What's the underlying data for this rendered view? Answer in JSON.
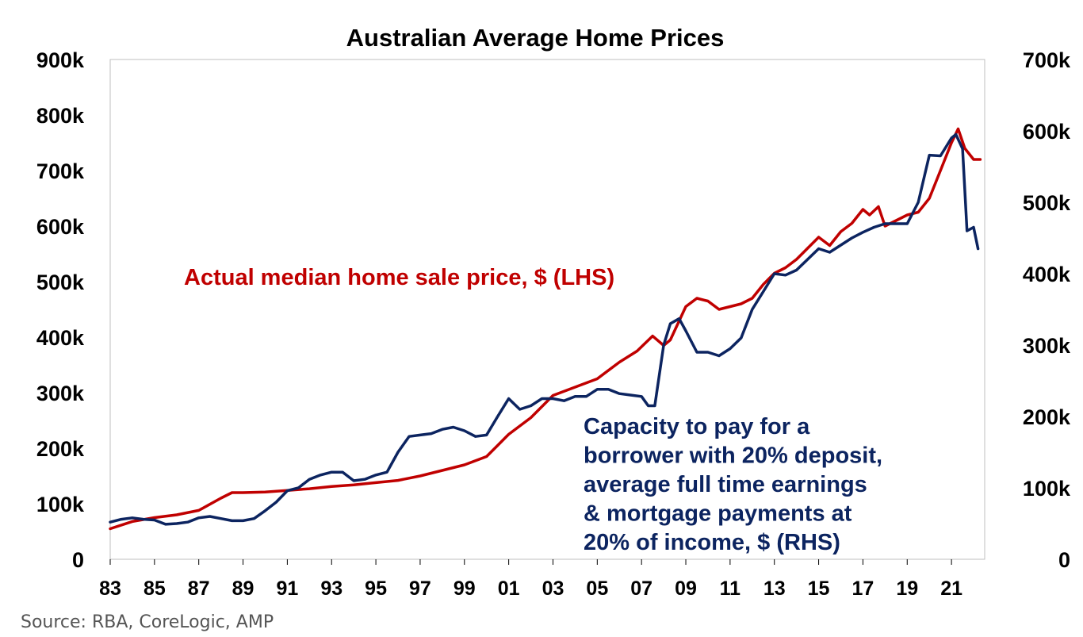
{
  "chart_data": {
    "type": "line",
    "title": "Australian Average Home Prices",
    "source": "Source: RBA, CoreLogic, AMP",
    "colors": {
      "lhs": "#c00000",
      "rhs": "#0c2460"
    },
    "x_range": [
      1983,
      2022.5
    ],
    "x_ticks": [
      "83",
      "85",
      "87",
      "89",
      "91",
      "93",
      "95",
      "97",
      "99",
      "01",
      "03",
      "05",
      "07",
      "09",
      "11",
      "13",
      "15",
      "17",
      "19",
      "21"
    ],
    "y_left": {
      "range": [
        0,
        900000
      ],
      "ticks": [
        "0",
        "100k",
        "200k",
        "300k",
        "400k",
        "500k",
        "600k",
        "700k",
        "800k",
        "900k"
      ]
    },
    "y_right": {
      "range": [
        0,
        700000
      ],
      "ticks": [
        "0",
        "100k",
        "200k",
        "300k",
        "400k",
        "500k",
        "600k",
        "700k"
      ]
    },
    "annotations": {
      "lhs_label": "Actual median home sale price, $ (LHS)",
      "rhs_label_lines": [
        "Capacity to pay for a",
        "borrower with 20% deposit,",
        "average full time earnings",
        "& mortgage payments at",
        "20% of income, $ (RHS)"
      ]
    },
    "series": [
      {
        "name": "Actual median home sale price, $ (LHS)",
        "axis": "left",
        "x": [
          1983,
          1984,
          1985,
          1986,
          1987,
          1988,
          1988.5,
          1989,
          1990,
          1991,
          1992,
          1993,
          1994,
          1995,
          1996,
          1997,
          1998,
          1999,
          2000,
          2000.5,
          2001,
          2002,
          2003,
          2004,
          2005,
          2006,
          2006.8,
          2007.5,
          2008,
          2008.3,
          2009,
          2009.5,
          2010,
          2010.5,
          2011,
          2011.5,
          2012,
          2012.5,
          2013,
          2013.5,
          2014,
          2014.5,
          2015,
          2015.5,
          2016,
          2016.5,
          2017,
          2017.3,
          2017.7,
          2018,
          2018.5,
          2019,
          2019.5,
          2020,
          2020.5,
          2021,
          2021.3,
          2021.6,
          2022,
          2022.3
        ],
        "values": [
          55000,
          68000,
          75000,
          80000,
          88000,
          110000,
          120000,
          120000,
          121000,
          124000,
          127000,
          131000,
          134000,
          138000,
          142000,
          150000,
          160000,
          170000,
          185000,
          205000,
          225000,
          255000,
          295000,
          310000,
          325000,
          355000,
          375000,
          402000,
          385000,
          395000,
          455000,
          470000,
          465000,
          450000,
          455000,
          460000,
          470000,
          495000,
          515000,
          525000,
          540000,
          560000,
          580000,
          565000,
          590000,
          605000,
          630000,
          620000,
          635000,
          600000,
          610000,
          620000,
          625000,
          650000,
          700000,
          750000,
          775000,
          740000,
          720000,
          720000
        ]
      },
      {
        "name": "Capacity to pay for a borrower with 20% deposit, average full time earnings & mortgage payments at 20% of income, $ (RHS)",
        "axis": "right",
        "x": [
          1983,
          1983.5,
          1984,
          1984.5,
          1985,
          1985.5,
          1986,
          1986.5,
          1987,
          1987.5,
          1988,
          1988.5,
          1989,
          1989.5,
          1990,
          1990.5,
          1991,
          1991.5,
          1992,
          1992.5,
          1993,
          1993.5,
          1994,
          1994.5,
          1995,
          1995.5,
          1996,
          1996.5,
          1997,
          1997.5,
          1998,
          1998.5,
          1999,
          1999.5,
          2000,
          2000.5,
          2001,
          2001.5,
          2002,
          2002.5,
          2003,
          2003.5,
          2004,
          2004.5,
          2005,
          2005.5,
          2006,
          2006.5,
          2007,
          2007.3,
          2007.6,
          2008,
          2008.3,
          2008.7,
          2009,
          2009.5,
          2010,
          2010.5,
          2011,
          2011.5,
          2012,
          2012.5,
          2013,
          2013.5,
          2014,
          2014.5,
          2015,
          2015.5,
          2016,
          2016.5,
          2017,
          2017.5,
          2018,
          2018.5,
          2019,
          2019.5,
          2020,
          2020.5,
          2021,
          2021.2,
          2021.5,
          2021.7,
          2022,
          2022.2
        ],
        "values": [
          52000,
          56000,
          58000,
          56000,
          55000,
          49000,
          50000,
          52000,
          58000,
          60000,
          57000,
          54000,
          54000,
          57000,
          68000,
          80000,
          96000,
          100000,
          112000,
          118000,
          122000,
          122000,
          110000,
          112000,
          118000,
          122000,
          150000,
          172000,
          174000,
          176000,
          182000,
          185000,
          180000,
          172000,
          174000,
          200000,
          225000,
          210000,
          215000,
          225000,
          225000,
          222000,
          228000,
          228000,
          238000,
          238000,
          232000,
          230000,
          228000,
          215000,
          215000,
          300000,
          330000,
          337000,
          320000,
          290000,
          290000,
          285000,
          295000,
          310000,
          350000,
          375000,
          400000,
          398000,
          405000,
          420000,
          435000,
          430000,
          440000,
          450000,
          458000,
          465000,
          470000,
          470000,
          470000,
          500000,
          566000,
          565000,
          590000,
          595000,
          575000,
          460000,
          465000,
          435000
        ]
      }
    ]
  }
}
